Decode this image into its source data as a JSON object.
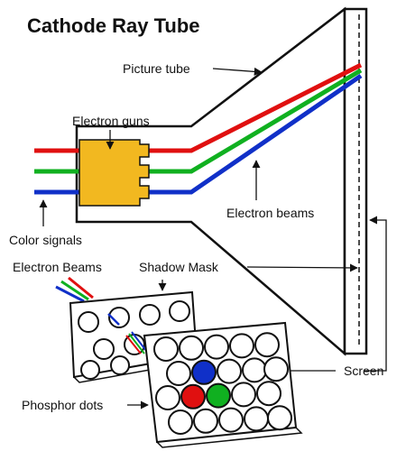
{
  "title": "Cathode Ray Tube",
  "labels": {
    "picture_tube": "Picture tube",
    "electron_guns": "Electron guns",
    "electron_beams": "Electron beams",
    "color_signals": "Color signals",
    "electron_beams_lower": "Electron Beams",
    "shadow_mask": "Shadow Mask",
    "screen": "Screen",
    "phosphor_dots": "Phosphor dots"
  },
  "colors": {
    "red": "#e01010",
    "green": "#10b020",
    "blue": "#1030c8",
    "gun": "#f2b820",
    "outline": "#111111"
  }
}
